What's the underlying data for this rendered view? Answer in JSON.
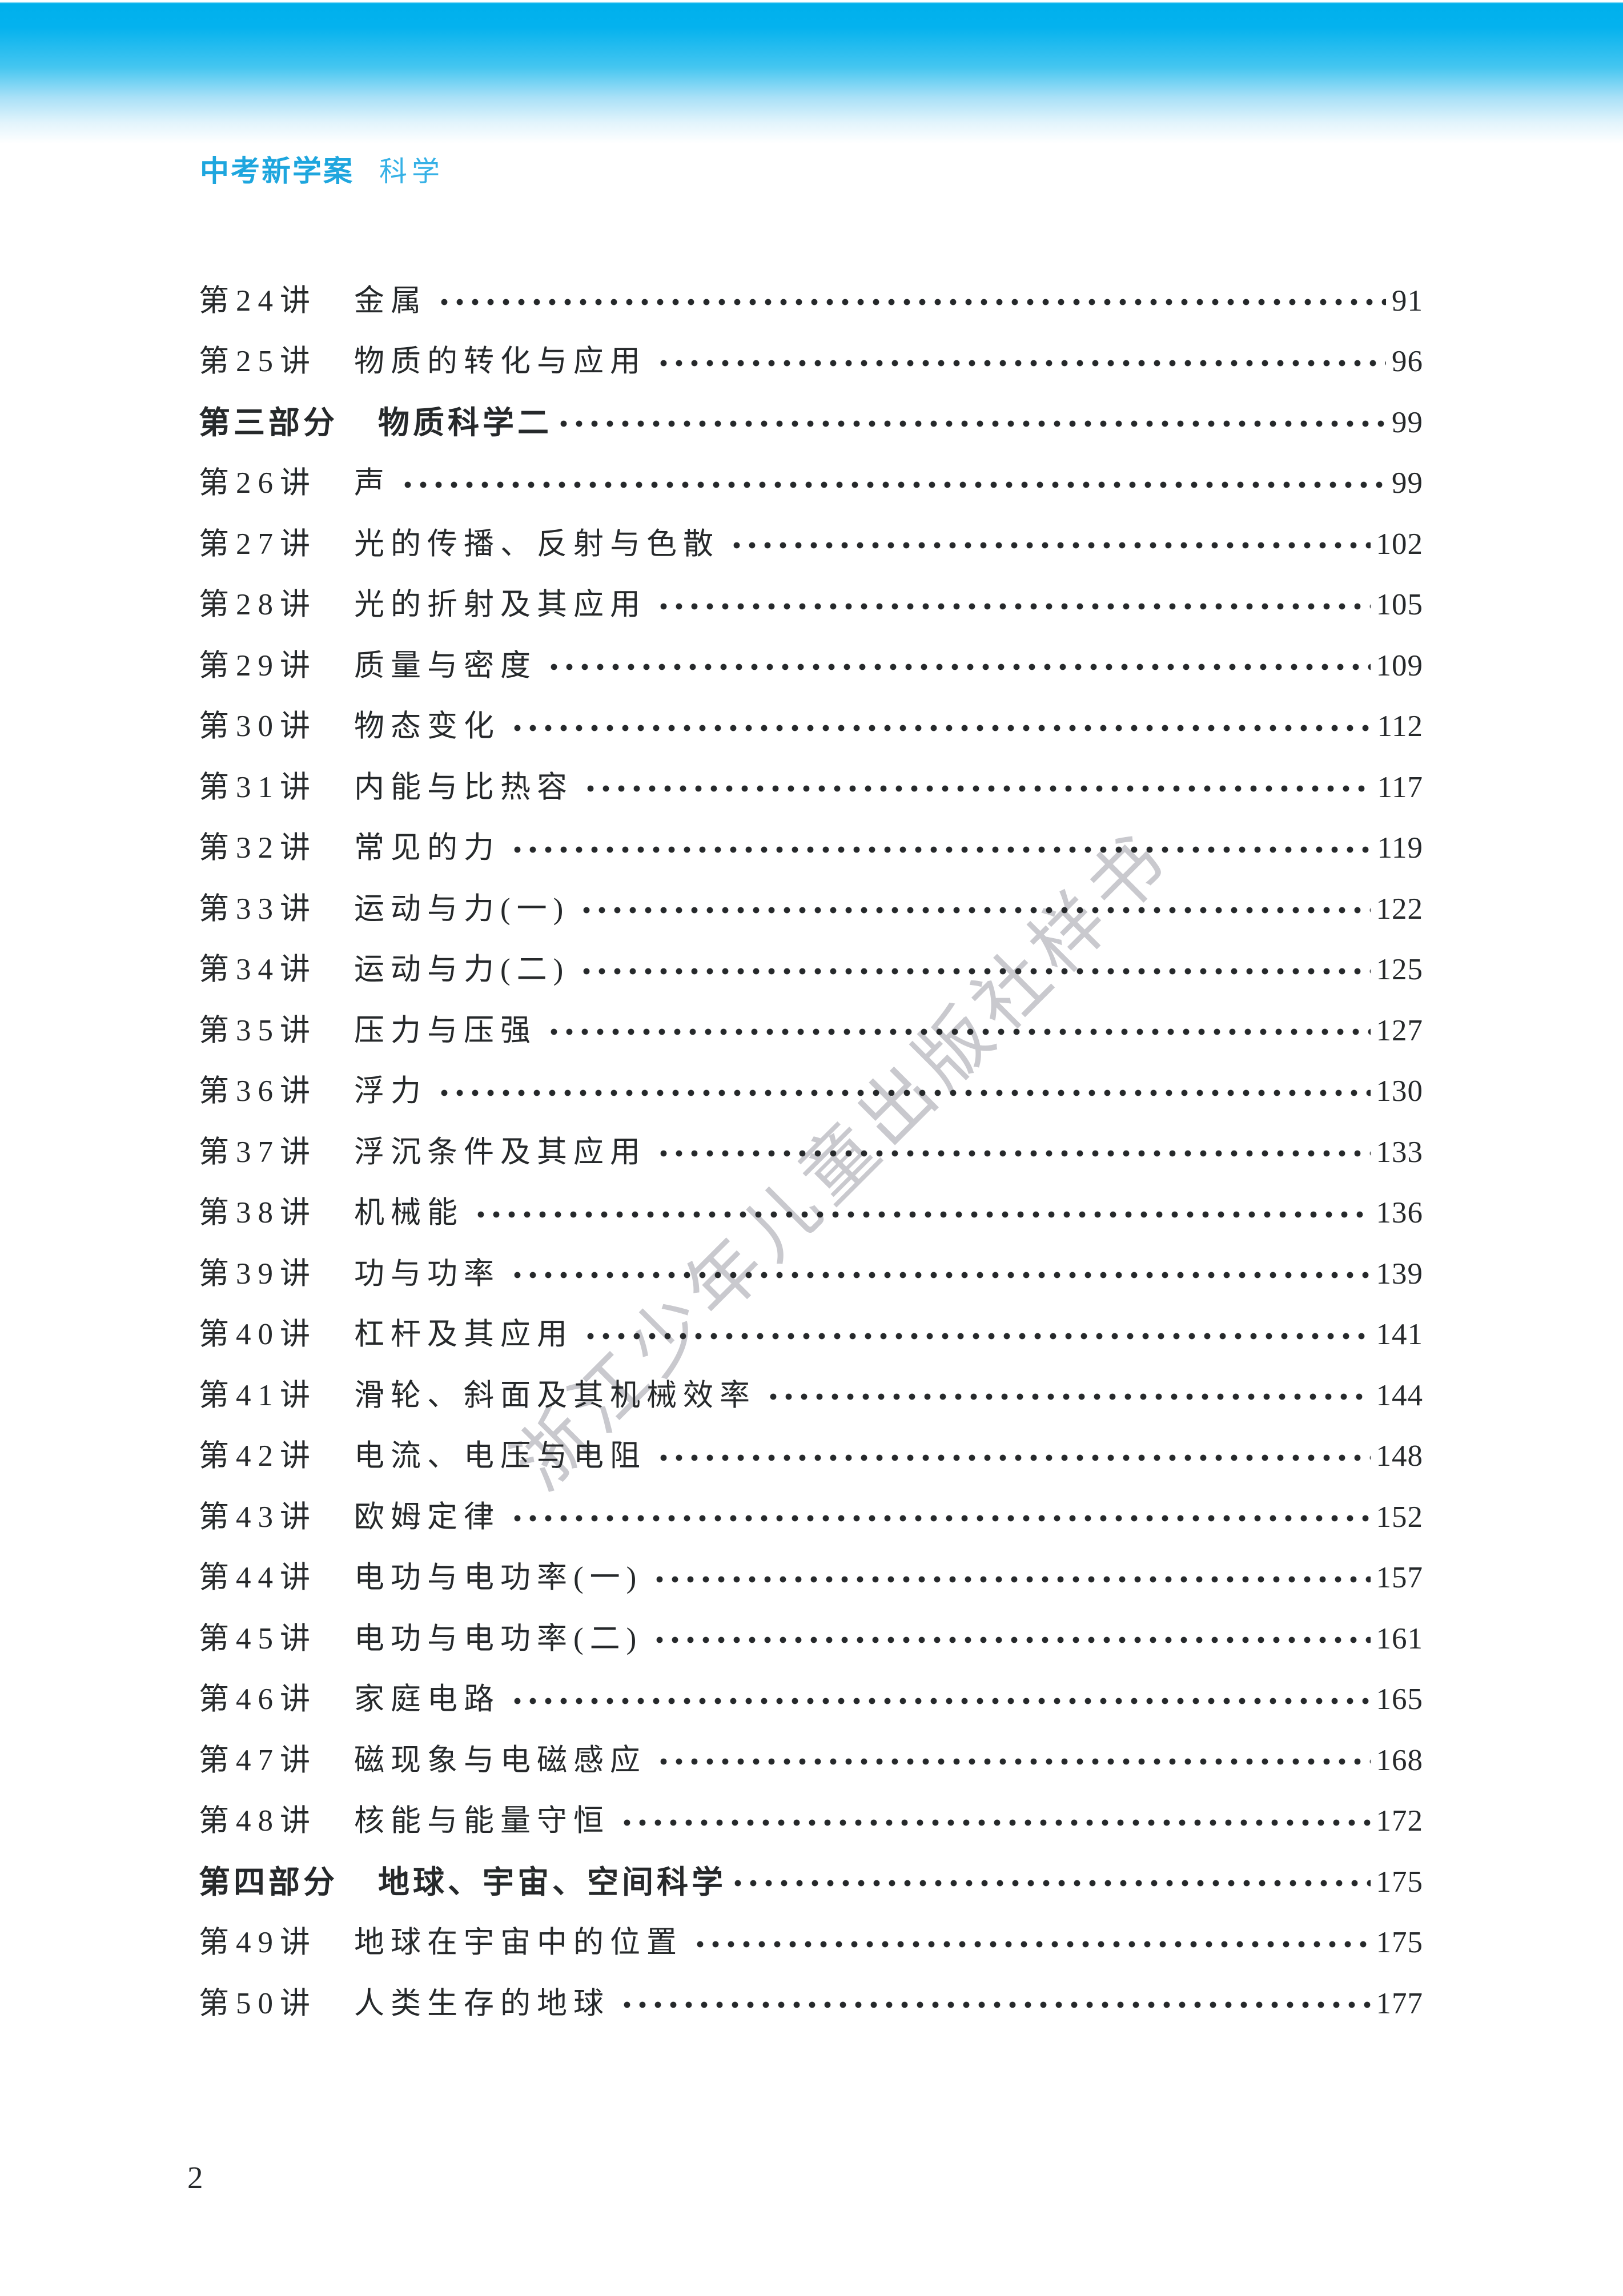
{
  "header": {
    "brand": "中考新学案",
    "subject": "科学"
  },
  "watermark": "浙江少年儿童出版社样书",
  "footer": {
    "page_number": "2"
  },
  "toc": {
    "rows": [
      {
        "type": "lecture",
        "label": "第24讲",
        "title": "金属",
        "page": "91"
      },
      {
        "type": "lecture",
        "label": "第25讲",
        "title": "物质的转化与应用",
        "page": "96"
      },
      {
        "type": "section",
        "label": "第三部分",
        "title": "物质科学二",
        "page": "99"
      },
      {
        "type": "lecture",
        "label": "第26讲",
        "title": "声",
        "page": "99"
      },
      {
        "type": "lecture",
        "label": "第27讲",
        "title": "光的传播、反射与色散",
        "page": "102"
      },
      {
        "type": "lecture",
        "label": "第28讲",
        "title": "光的折射及其应用",
        "page": "105"
      },
      {
        "type": "lecture",
        "label": "第29讲",
        "title": "质量与密度",
        "page": "109"
      },
      {
        "type": "lecture",
        "label": "第30讲",
        "title": "物态变化",
        "page": "112"
      },
      {
        "type": "lecture",
        "label": "第31讲",
        "title": "内能与比热容",
        "page": "117"
      },
      {
        "type": "lecture",
        "label": "第32讲",
        "title": "常见的力",
        "page": "119"
      },
      {
        "type": "lecture",
        "label": "第33讲",
        "title": "运动与力(一)",
        "page": "122"
      },
      {
        "type": "lecture",
        "label": "第34讲",
        "title": "运动与力(二)",
        "page": "125"
      },
      {
        "type": "lecture",
        "label": "第35讲",
        "title": "压力与压强",
        "page": "127"
      },
      {
        "type": "lecture",
        "label": "第36讲",
        "title": "浮力",
        "page": "130"
      },
      {
        "type": "lecture",
        "label": "第37讲",
        "title": "浮沉条件及其应用",
        "page": "133"
      },
      {
        "type": "lecture",
        "label": "第38讲",
        "title": "机械能",
        "page": "136"
      },
      {
        "type": "lecture",
        "label": "第39讲",
        "title": "功与功率",
        "page": "139"
      },
      {
        "type": "lecture",
        "label": "第40讲",
        "title": "杠杆及其应用",
        "page": "141"
      },
      {
        "type": "lecture",
        "label": "第41讲",
        "title": "滑轮、斜面及其机械效率",
        "page": "144"
      },
      {
        "type": "lecture",
        "label": "第42讲",
        "title": "电流、电压与电阻",
        "page": "148"
      },
      {
        "type": "lecture",
        "label": "第43讲",
        "title": "欧姆定律",
        "page": "152"
      },
      {
        "type": "lecture",
        "label": "第44讲",
        "title": "电功与电功率(一)",
        "page": "157"
      },
      {
        "type": "lecture",
        "label": "第45讲",
        "title": "电功与电功率(二)",
        "page": "161"
      },
      {
        "type": "lecture",
        "label": "第46讲",
        "title": "家庭电路",
        "page": "165"
      },
      {
        "type": "lecture",
        "label": "第47讲",
        "title": "磁现象与电磁感应",
        "page": "168"
      },
      {
        "type": "lecture",
        "label": "第48讲",
        "title": "核能与能量守恒",
        "page": "172"
      },
      {
        "type": "section",
        "label": "第四部分",
        "title": "地球、宇宙、空间科学",
        "page": "175"
      },
      {
        "type": "lecture",
        "label": "第49讲",
        "title": "地球在宇宙中的位置",
        "page": "175"
      },
      {
        "type": "lecture",
        "label": "第50讲",
        "title": "人类生存的地球",
        "page": "177"
      }
    ]
  },
  "colors": {
    "band_top_blue": "#00b0ec",
    "brand_blue": "#1ea6de",
    "subject_blue": "#36b1e6",
    "text_black": "#26292b",
    "watermark_gray": "#c9c9ce"
  }
}
